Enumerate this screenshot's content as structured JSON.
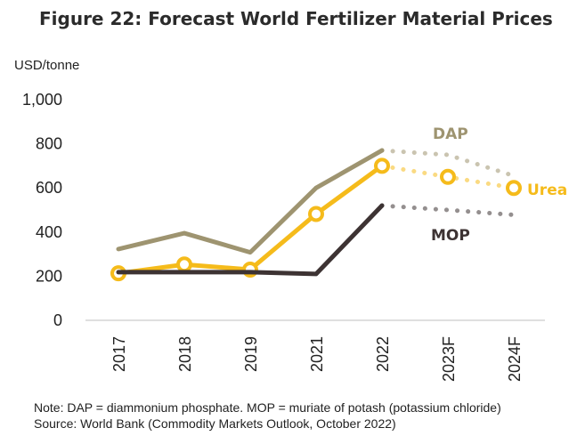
{
  "figure": {
    "title": "Figure 22: Forecast World Fertilizer Material Prices",
    "note": "Note: DAP = diammonium phosphate. MOP = muriate of potash (potassium chloride)",
    "source": "Source: World Bank (Commodity Markets Outlook, October 2022)"
  },
  "chart_data": {
    "type": "line",
    "title": "Figure 22: Forecast World Fertilizer Material Prices",
    "ylabel": "USD/tonne",
    "xlabel": "",
    "categories": [
      "2017",
      "2018",
      "2019",
      "2021",
      "2022",
      "2023F",
      "2024F"
    ],
    "ylim": [
      0,
      1000
    ],
    "yticks": [
      "0",
      "200",
      "400",
      "600",
      "800",
      "1,000"
    ],
    "grid": false,
    "legend": "inline labels",
    "actual_count": 5,
    "series": [
      {
        "name": "DAP",
        "color": "#9e9470",
        "values": [
          323,
          395,
          308,
          600,
          770,
          750,
          655
        ]
      },
      {
        "name": "Urea",
        "color": "#f5bb1b",
        "markers": true,
        "values": [
          213,
          253,
          230,
          482,
          700,
          650,
          600
        ]
      },
      {
        "name": "MOP",
        "color": "#3d3333",
        "values": [
          218,
          218,
          218,
          210,
          520,
          500,
          478
        ]
      }
    ]
  }
}
